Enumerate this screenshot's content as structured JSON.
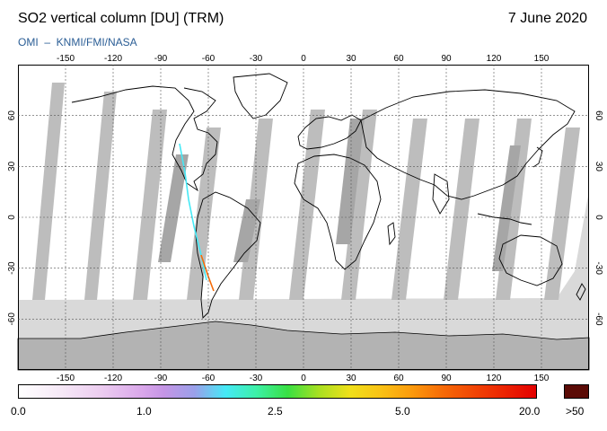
{
  "header": {
    "title": "SO2 vertical column [DU] (TRM)",
    "date": "7 June 2020",
    "credit": "OMI  –  KNMI/FMI/NASA"
  },
  "map": {
    "projection": "equirectangular",
    "lon_ticks": [
      -150,
      -120,
      -90,
      -60,
      -30,
      0,
      30,
      60,
      90,
      120,
      150
    ],
    "lat_ticks": [
      60,
      30,
      0,
      -30,
      -60
    ],
    "background_gray": "#d9d9d9",
    "swath_gray": "#a8a8a8"
  },
  "colorbar": {
    "labels": [
      "0.0",
      "1.0",
      "2.5",
      "5.0",
      "20.0"
    ],
    "over_label": ">50",
    "over_color": "#5b0b06"
  }
}
